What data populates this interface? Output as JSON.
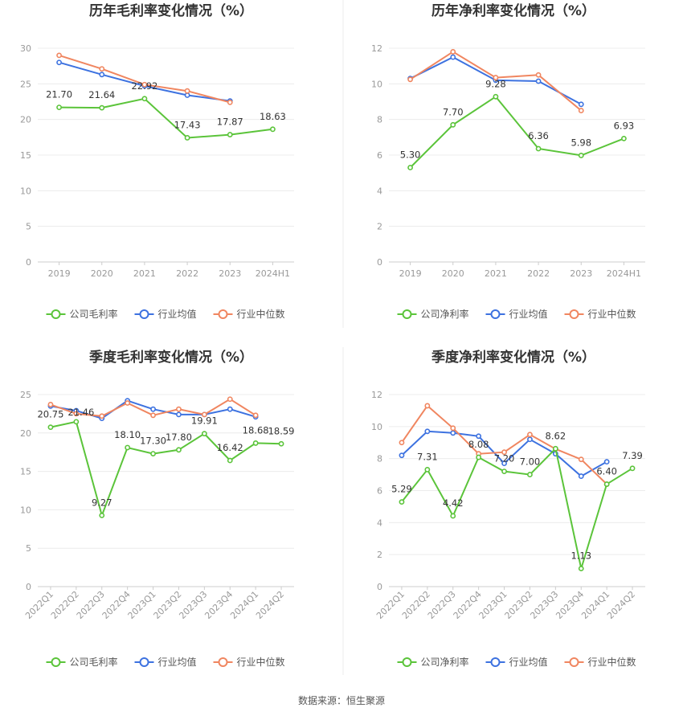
{
  "source": "数据来源：恒生聚源",
  "legend_colors": {
    "公司": "#5bc43a",
    "行业均值": "#3d72e0",
    "行业中位数": "#f08660"
  },
  "chart_data": [
    {
      "type": "line",
      "title": "历年毛利率变化情况（%）",
      "categories": [
        "2019",
        "2020",
        "2021",
        "2022",
        "2023",
        "2024H1"
      ],
      "ylim": [
        0,
        30
      ],
      "yticks": [
        0,
        5,
        10,
        15,
        20,
        25,
        30
      ],
      "series": [
        {
          "name": "公司毛利率",
          "color": "#5bc43a",
          "values": [
            21.7,
            21.64,
            22.92,
            17.43,
            17.87,
            18.63
          ],
          "labels": true
        },
        {
          "name": "行业均值",
          "color": "#3d72e0",
          "values": [
            28.0,
            26.3,
            24.7,
            23.4,
            22.6,
            null
          ]
        },
        {
          "name": "行业中位数",
          "color": "#f08660",
          "values": [
            29.0,
            27.1,
            24.9,
            24.0,
            22.4,
            null
          ]
        }
      ]
    },
    {
      "type": "line",
      "title": "历年净利率变化情况（%）",
      "categories": [
        "2019",
        "2020",
        "2021",
        "2022",
        "2023",
        "2024H1"
      ],
      "ylim": [
        0,
        12
      ],
      "yticks": [
        0,
        2,
        4,
        6,
        8,
        10,
        12
      ],
      "series": [
        {
          "name": "公司净利率",
          "color": "#5bc43a",
          "values": [
            5.3,
            7.7,
            9.28,
            6.36,
            5.98,
            6.93
          ],
          "labels": true
        },
        {
          "name": "行业均值",
          "color": "#3d72e0",
          "values": [
            10.3,
            11.5,
            10.2,
            10.15,
            8.85,
            null
          ]
        },
        {
          "name": "行业中位数",
          "color": "#f08660",
          "values": [
            10.25,
            11.8,
            10.35,
            10.5,
            8.5,
            null
          ]
        }
      ]
    },
    {
      "type": "line",
      "title": "季度毛利率变化情况（%）",
      "categories": [
        "2022Q1",
        "2022Q2",
        "2022Q3",
        "2022Q4",
        "2023Q1",
        "2023Q2",
        "2023Q3",
        "2023Q4",
        "2024Q1",
        "2024Q2"
      ],
      "ylim": [
        0,
        25
      ],
      "yticks": [
        0,
        5,
        10,
        15,
        20,
        25
      ],
      "series": [
        {
          "name": "公司毛利率",
          "color": "#5bc43a",
          "values": [
            20.75,
            21.46,
            9.27,
            18.1,
            17.3,
            17.8,
            19.91,
            16.42,
            18.68,
            18.59
          ],
          "labels": true
        },
        {
          "name": "行业均值",
          "color": "#3d72e0",
          "values": [
            23.5,
            22.9,
            21.9,
            24.2,
            23.1,
            22.4,
            22.4,
            23.1,
            22.1,
            null
          ]
        },
        {
          "name": "行业中位数",
          "color": "#f08660",
          "values": [
            23.7,
            22.5,
            22.2,
            23.9,
            22.3,
            23.1,
            22.4,
            24.4,
            22.3,
            null
          ]
        }
      ]
    },
    {
      "type": "line",
      "title": "季度净利率变化情况（%）",
      "categories": [
        "2022Q1",
        "2022Q2",
        "2022Q3",
        "2022Q4",
        "2023Q1",
        "2023Q2",
        "2023Q3",
        "2023Q4",
        "2024Q1",
        "2024Q2"
      ],
      "ylim": [
        0,
        12
      ],
      "yticks": [
        0,
        2,
        4,
        6,
        8,
        10,
        12
      ],
      "series": [
        {
          "name": "公司净利率",
          "color": "#5bc43a",
          "values": [
            5.29,
            7.31,
            4.42,
            8.08,
            7.2,
            7.0,
            8.62,
            1.13,
            6.4,
            7.39
          ],
          "labels": true
        },
        {
          "name": "行业均值",
          "color": "#3d72e0",
          "values": [
            8.2,
            9.7,
            9.6,
            9.4,
            7.7,
            9.2,
            8.3,
            6.9,
            7.8,
            null
          ]
        },
        {
          "name": "行业中位数",
          "color": "#f08660",
          "values": [
            9.0,
            11.3,
            9.9,
            8.3,
            8.4,
            9.5,
            8.6,
            7.95,
            6.4,
            null
          ]
        }
      ]
    }
  ]
}
